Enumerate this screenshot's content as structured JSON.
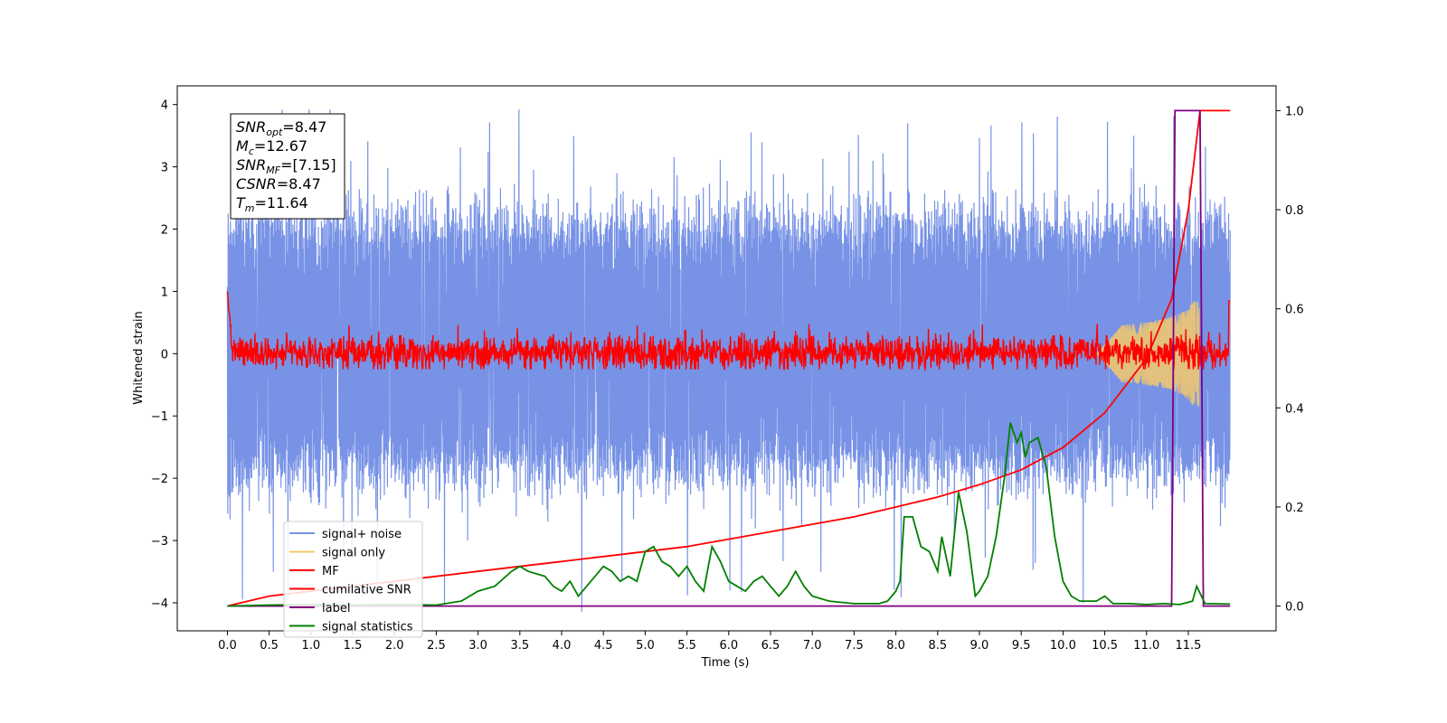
{
  "chart_data": {
    "type": "line",
    "title": "",
    "xlabel": "Time (s)",
    "ylabel": "Whitened strain",
    "y2label": "",
    "xlim": [
      -0.6,
      12.55
    ],
    "ylim": [
      -4.45,
      4.3
    ],
    "y2lim": [
      -0.05,
      1.05
    ],
    "x_ticks": [
      0.0,
      0.5,
      1.0,
      1.5,
      2.0,
      2.5,
      3.0,
      3.5,
      4.0,
      4.5,
      5.0,
      5.5,
      6.0,
      6.5,
      7.0,
      7.5,
      8.0,
      8.5,
      9.0,
      9.5,
      10.0,
      10.5,
      11.0,
      11.5
    ],
    "x_tick_labels": [
      "0.0",
      "0.5",
      "1.0",
      "1.5",
      "2.0",
      "2.5",
      "3.0",
      "3.5",
      "4.0",
      "4.5",
      "5.0",
      "5.5",
      "6.0",
      "6.5",
      "7.0",
      "7.5",
      "8.0",
      "8.5",
      "9.0",
      "9.5",
      "10.0",
      "10.5",
      "11.0",
      "11.5"
    ],
    "y_ticks": [
      4,
      3,
      2,
      1,
      0,
      -1,
      -2,
      -3,
      -4
    ],
    "y_tick_labels": [
      "4",
      "3",
      "2",
      "1",
      "0",
      "−1",
      "−2",
      "−3",
      "−4"
    ],
    "y2_ticks": [
      1.0,
      0.8,
      0.6,
      0.4,
      0.2,
      0.0
    ],
    "y2_tick_labels": [
      "1.0",
      "0.8",
      "0.6",
      "0.4",
      "0.2",
      "0.0"
    ],
    "grid": false,
    "legend_position": "lower-left",
    "annotation": {
      "lines": [
        {
          "sym": "SNR",
          "sub": "opt",
          "val": "=8.47"
        },
        {
          "sym": "M",
          "sub": "c",
          "val": "=12.67"
        },
        {
          "sym": "SNR",
          "sub": "MF",
          "val": "=[7.15]"
        },
        {
          "sym": "CSNR",
          "sub": "",
          "val": "=8.47"
        },
        {
          "sym": "T",
          "sub": "m",
          "val": "=11.64"
        }
      ]
    },
    "series": [
      {
        "name": "signal+ noise",
        "color": "#7893e6",
        "axis": "left",
        "kind": "noise_band",
        "x_range": [
          0.0,
          12.0
        ],
        "typical_range": [
          -2.1,
          2.3
        ],
        "extremes": [
          -4.15,
          3.92
        ]
      },
      {
        "name": "signal only",
        "color": "#f5c86a",
        "axis": "left",
        "kind": "chirp",
        "x_range": [
          10.4,
          11.64
        ],
        "max_amplitude": 0.85
      },
      {
        "name": "MF",
        "color": "#ff0000",
        "axis": "left",
        "kind": "noise_band",
        "x_range": [
          0.0,
          12.0
        ],
        "typical_range": [
          -0.18,
          0.22
        ],
        "extremes": [
          -0.25,
          1.0
        ]
      },
      {
        "name": "cumilative SNR",
        "color": "#ff0000",
        "axis": "right",
        "x": [
          0.0,
          0.5,
          1.0,
          1.5,
          2.0,
          2.5,
          3.0,
          3.5,
          4.0,
          4.5,
          5.0,
          5.5,
          6.0,
          6.5,
          7.0,
          7.5,
          8.0,
          8.5,
          9.0,
          9.5,
          10.0,
          10.5,
          11.0,
          11.3,
          11.5,
          11.64,
          12.0
        ],
        "y": [
          0.0,
          0.02,
          0.03,
          0.04,
          0.05,
          0.06,
          0.07,
          0.08,
          0.09,
          0.1,
          0.11,
          0.12,
          0.135,
          0.15,
          0.165,
          0.18,
          0.2,
          0.22,
          0.245,
          0.275,
          0.32,
          0.39,
          0.5,
          0.62,
          0.8,
          1.0,
          1.0
        ]
      },
      {
        "name": "label",
        "color": "#800080",
        "axis": "right",
        "x": [
          0.0,
          11.3,
          11.34,
          11.64,
          11.68,
          12.0
        ],
        "y": [
          0.0,
          0.0,
          1.0,
          1.0,
          0.0,
          0.0
        ]
      },
      {
        "name": "signal statistics",
        "color": "#008000",
        "axis": "right",
        "x": [
          0.0,
          0.5,
          1.0,
          1.5,
          2.0,
          2.5,
          2.8,
          3.0,
          3.2,
          3.4,
          3.5,
          3.6,
          3.8,
          3.9,
          4.0,
          4.1,
          4.2,
          4.3,
          4.4,
          4.5,
          4.6,
          4.7,
          4.8,
          4.9,
          5.0,
          5.1,
          5.2,
          5.3,
          5.4,
          5.5,
          5.6,
          5.7,
          5.8,
          5.9,
          6.0,
          6.1,
          6.2,
          6.3,
          6.4,
          6.5,
          6.6,
          6.7,
          6.8,
          6.9,
          7.0,
          7.2,
          7.5,
          7.8,
          7.9,
          8.0,
          8.05,
          8.1,
          8.2,
          8.3,
          8.4,
          8.5,
          8.55,
          8.65,
          8.75,
          8.85,
          8.95,
          9.0,
          9.1,
          9.2,
          9.3,
          9.37,
          9.45,
          9.5,
          9.55,
          9.6,
          9.7,
          9.8,
          9.9,
          10.0,
          10.1,
          10.2,
          10.3,
          10.4,
          10.5,
          10.6,
          10.8,
          11.0,
          11.2,
          11.4,
          11.55,
          11.6,
          11.7,
          12.0
        ],
        "y": [
          0.0,
          0.002,
          0.003,
          0.002,
          0.003,
          0.002,
          0.01,
          0.03,
          0.04,
          0.07,
          0.08,
          0.07,
          0.06,
          0.04,
          0.03,
          0.05,
          0.02,
          0.04,
          0.06,
          0.08,
          0.07,
          0.05,
          0.06,
          0.05,
          0.11,
          0.12,
          0.09,
          0.08,
          0.06,
          0.08,
          0.05,
          0.03,
          0.12,
          0.09,
          0.05,
          0.04,
          0.03,
          0.05,
          0.06,
          0.04,
          0.02,
          0.04,
          0.07,
          0.04,
          0.02,
          0.01,
          0.005,
          0.005,
          0.01,
          0.03,
          0.05,
          0.18,
          0.18,
          0.12,
          0.11,
          0.07,
          0.14,
          0.06,
          0.23,
          0.15,
          0.02,
          0.03,
          0.06,
          0.14,
          0.26,
          0.37,
          0.33,
          0.35,
          0.3,
          0.33,
          0.34,
          0.28,
          0.14,
          0.05,
          0.02,
          0.01,
          0.01,
          0.01,
          0.02,
          0.005,
          0.005,
          0.003,
          0.005,
          0.003,
          0.01,
          0.04,
          0.005,
          0.004
        ]
      }
    ]
  }
}
